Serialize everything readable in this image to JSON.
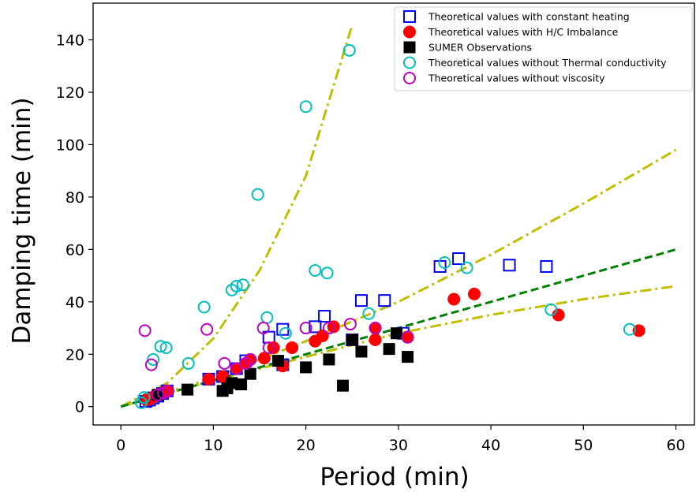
{
  "chart_data": {
    "type": "scatter",
    "title": "",
    "xlabel": "Period (min)",
    "ylabel": "Damping time (min)",
    "xlim": [
      -3,
      62
    ],
    "ylim": [
      -7,
      154
    ],
    "xticks": [
      0,
      10,
      20,
      30,
      40,
      50,
      60
    ],
    "yticks": [
      0,
      20,
      40,
      60,
      80,
      100,
      120,
      140
    ],
    "grid": false,
    "legend_position": "top-right",
    "series": [
      {
        "name": "Theoretical values with constant heating",
        "marker": "square-open",
        "color": "#0000ff",
        "points": [
          [
            2.7,
            2
          ],
          [
            3.1,
            2.5
          ],
          [
            3.5,
            3.3
          ],
          [
            4.0,
            4.0
          ],
          [
            4.5,
            5.0
          ],
          [
            5.0,
            6.0
          ],
          [
            9.5,
            10.5
          ],
          [
            11.0,
            11.5
          ],
          [
            12.5,
            14.5
          ],
          [
            13.5,
            17.5
          ],
          [
            16.0,
            26.5
          ],
          [
            17.5,
            29.5
          ],
          [
            17.5,
            16
          ],
          [
            21.0,
            30.5
          ],
          [
            22.0,
            34.5
          ],
          [
            25.0,
            25.5
          ],
          [
            26.0,
            40.5
          ],
          [
            28.5,
            40.5
          ],
          [
            30.5,
            28
          ],
          [
            34.5,
            53.5
          ],
          [
            36.5,
            56.5
          ],
          [
            42.0,
            54
          ],
          [
            46.0,
            53.5
          ]
        ]
      },
      {
        "name": "Theoretical values with H/C Imbalance",
        "marker": "circle-filled",
        "color": "#ff0000",
        "points": [
          [
            2.8,
            2.5
          ],
          [
            3.2,
            3.0
          ],
          [
            3.6,
            3.8
          ],
          [
            4.0,
            4.5
          ],
          [
            4.5,
            5.2
          ],
          [
            5.0,
            6.0
          ],
          [
            9.5,
            10.5
          ],
          [
            11.0,
            11.5
          ],
          [
            12.5,
            14.5
          ],
          [
            13.5,
            16.5
          ],
          [
            14.0,
            18
          ],
          [
            15.5,
            18.5
          ],
          [
            16.5,
            22.5
          ],
          [
            17.5,
            15.5
          ],
          [
            18.5,
            22.5
          ],
          [
            21.0,
            25
          ],
          [
            21.8,
            27
          ],
          [
            23.0,
            30.5
          ],
          [
            25.0,
            25.5
          ],
          [
            27.5,
            30
          ],
          [
            27.5,
            25.5
          ],
          [
            31.0,
            26.5
          ],
          [
            36.0,
            41
          ],
          [
            38.2,
            43
          ],
          [
            47.3,
            35
          ],
          [
            56.0,
            29
          ]
        ]
      },
      {
        "name": "SUMER Observations",
        "marker": "square-filled",
        "color": "#000000",
        "points": [
          [
            4.0,
            4.5
          ],
          [
            7.2,
            6.5
          ],
          [
            11.0,
            6
          ],
          [
            11.5,
            7
          ],
          [
            12.0,
            9
          ],
          [
            13.0,
            8.5
          ],
          [
            14.0,
            12.5
          ],
          [
            17.0,
            17.5
          ],
          [
            20.0,
            15
          ],
          [
            22.5,
            18
          ],
          [
            24.0,
            8
          ],
          [
            25.0,
            25.5
          ],
          [
            26.0,
            21
          ],
          [
            29.0,
            22
          ],
          [
            29.8,
            28
          ],
          [
            31.0,
            19
          ]
        ]
      },
      {
        "name": "Theoretical values without Thermal conductivity",
        "marker": "circle-open",
        "color": "#00bfbf",
        "points": [
          [
            2.2,
            1.5
          ],
          [
            2.5,
            3.5
          ],
          [
            3.5,
            18
          ],
          [
            4.3,
            23
          ],
          [
            4.9,
            22.5
          ],
          [
            7.3,
            16.5
          ],
          [
            9.0,
            38
          ],
          [
            12.0,
            44.5
          ],
          [
            12.5,
            46
          ],
          [
            13.2,
            46.5
          ],
          [
            14.8,
            81
          ],
          [
            15.8,
            34
          ],
          [
            17.8,
            28
          ],
          [
            20.0,
            114.5
          ],
          [
            21.0,
            52
          ],
          [
            22.3,
            51
          ],
          [
            24.7,
            136
          ],
          [
            26.8,
            35.5
          ],
          [
            35.0,
            55
          ],
          [
            37.4,
            53
          ],
          [
            46.5,
            37
          ],
          [
            55.0,
            29.5
          ]
        ]
      },
      {
        "name": "Theoretical values without viscosity",
        "marker": "circle-open",
        "color": "#bf00bf",
        "points": [
          [
            2.6,
            29
          ],
          [
            3.3,
            16
          ],
          [
            4.0,
            4.5
          ],
          [
            4.6,
            5.2
          ],
          [
            5.1,
            6
          ],
          [
            9.3,
            29.5
          ],
          [
            11.2,
            16.5
          ],
          [
            12.5,
            14.5
          ],
          [
            13.5,
            16.5
          ],
          [
            14.0,
            18
          ],
          [
            15.4,
            30
          ],
          [
            16.0,
            22.5
          ],
          [
            20.0,
            30
          ],
          [
            22.5,
            30
          ],
          [
            24.8,
            31.5
          ],
          [
            27.5,
            30
          ],
          [
            31.0,
            26.5
          ]
        ]
      }
    ],
    "trend_lines": [
      {
        "color": "#bfbf00",
        "style": "dash-dot",
        "points": [
          [
            0,
            0
          ],
          [
            5,
            9
          ],
          [
            10,
            26
          ],
          [
            15,
            52
          ],
          [
            20,
            88
          ],
          [
            25,
            145.5
          ]
        ]
      },
      {
        "color": "#bfbf00",
        "style": "dash-dot",
        "points": [
          [
            0,
            0
          ],
          [
            10,
            11
          ],
          [
            20,
            25
          ],
          [
            30,
            40
          ],
          [
            40,
            58
          ],
          [
            50,
            77.5
          ],
          [
            60,
            98
          ]
        ]
      },
      {
        "color": "#bfbf00",
        "style": "dash-dot",
        "points": [
          [
            0,
            0
          ],
          [
            10,
            10
          ],
          [
            20,
            19
          ],
          [
            30,
            28
          ],
          [
            40,
            35
          ],
          [
            50,
            41
          ],
          [
            60,
            46
          ]
        ]
      },
      {
        "color": "#008000",
        "style": "dashed",
        "points": [
          [
            0,
            0
          ],
          [
            60,
            60
          ]
        ]
      }
    ]
  }
}
